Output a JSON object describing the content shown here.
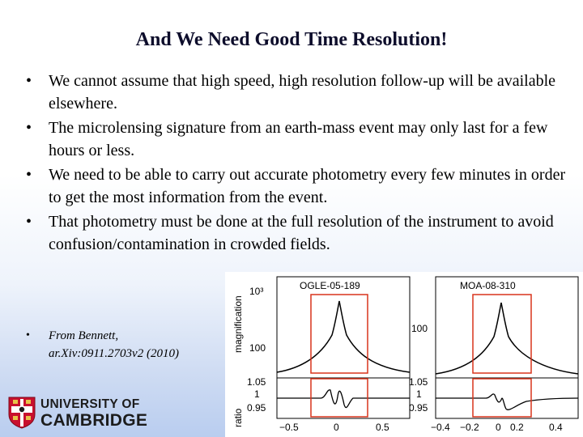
{
  "slide": {
    "title": "And We Need Good Time Resolution!",
    "bullets": [
      "We cannot assume that high speed, high resolution follow-up will be available elsewhere.",
      "The microlensing signature from an earth-mass event may only last for a few hours or less.",
      "We need to be able to carry out accurate photometry every few minutes in order to get the most information from the event.",
      "That photometry must be done at the full resolution of the instrument to avoid confusion/contamination in crowded fields."
    ],
    "bullet_glyph": "•",
    "reference": {
      "glyph": "•",
      "line1": "From Bennett,",
      "line2": "ar.Xiv:0911.2703v2 (2010)"
    }
  },
  "logo": {
    "line1": "UNIVERSITY OF",
    "line2": "CAMBRIDGE",
    "crest_colors": [
      "#c8102e",
      "#ffffff",
      "#1c1c1c"
    ]
  },
  "figure": {
    "y_axis_label_top": "magnification",
    "y_axis_label_bottom": "ratio",
    "panels": [
      {
        "title": "OGLE-05-189",
        "top_ticks": [
          "10³",
          "100"
        ],
        "bottom_ticks": [
          "1.05",
          "1",
          "0.95"
        ],
        "x_ticks": [
          "−0.5",
          "0",
          "0.5"
        ]
      },
      {
        "title": "MOA-08-310",
        "top_ticks": [
          "100"
        ],
        "bottom_ticks": [
          "1.05",
          "1",
          "0.95"
        ],
        "x_ticks": [
          "−0.4",
          "−0.2",
          "0",
          "0.2",
          "0.4"
        ]
      }
    ],
    "highlight_color": "#d8341c"
  }
}
